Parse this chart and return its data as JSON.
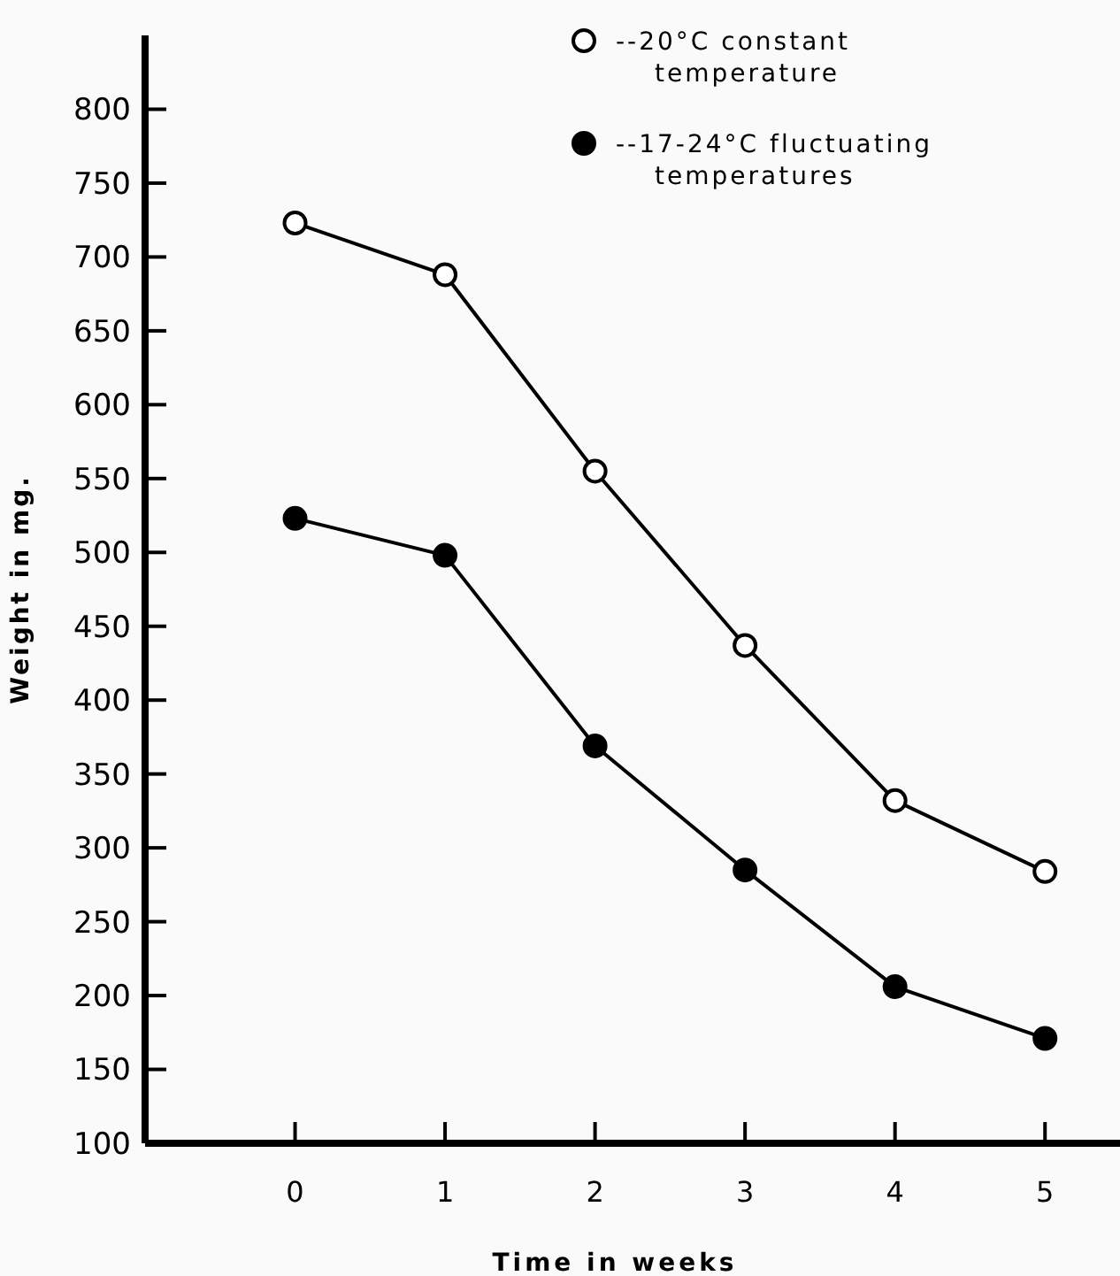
{
  "chart_data": {
    "type": "line",
    "xlabel": "Time in weeks",
    "ylabel": "Weight in mg.",
    "x": [
      0,
      1,
      2,
      3,
      4,
      5
    ],
    "series": [
      {
        "name": "--20°C constant temperature",
        "color": "#000000",
        "colors": [
          "#ffffff",
          "#ffffff",
          "#ffffff",
          "#ffffff",
          "#ffffff",
          "#ffffff"
        ],
        "values": [
          723,
          688,
          555,
          437,
          332,
          284
        ]
      },
      {
        "name": "--17-24°C fluctuating temperatures",
        "color": "#000000",
        "values": [
          523,
          498,
          369,
          285,
          206,
          171
        ]
      }
    ],
    "xlim": [
      -1,
      5.5
    ],
    "xticks": [
      0,
      1,
      2,
      3,
      4,
      5
    ],
    "ylim": [
      100,
      850
    ],
    "yticks": [
      100,
      150,
      200,
      250,
      300,
      350,
      400,
      450,
      500,
      550,
      600,
      650,
      700,
      750,
      800
    ],
    "grid": false,
    "legend": "top right",
    "marker": "circle",
    "line_style": "solid"
  }
}
